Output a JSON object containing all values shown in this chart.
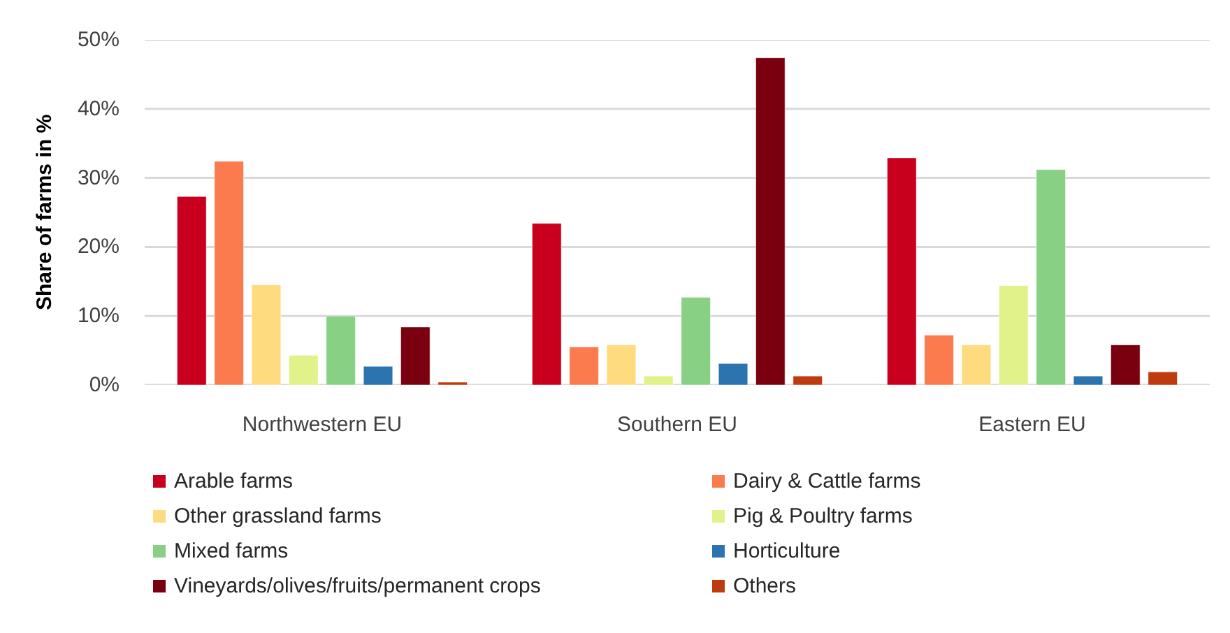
{
  "chart_data": {
    "type": "bar",
    "ylabel": "Share of farms in %",
    "categories": [
      "Northwestern EU",
      "Southern EU",
      "Eastern EU"
    ],
    "series": [
      {
        "name": "Arable farms",
        "color": "#c8001e",
        "values": [
          27.3,
          23.4,
          32.9
        ]
      },
      {
        "name": "Dairy & Cattle farms",
        "color": "#fc7b4e",
        "values": [
          32.4,
          5.5,
          7.2
        ]
      },
      {
        "name": "Other grassland farms",
        "color": "#fedb7f",
        "values": [
          14.5,
          5.8,
          5.8
        ]
      },
      {
        "name": "Pig & Poultry farms",
        "color": "#e2f28b",
        "values": [
          4.3,
          1.3,
          14.4
        ]
      },
      {
        "name": "Mixed farms",
        "color": "#88d084",
        "values": [
          10.0,
          12.7,
          31.2
        ]
      },
      {
        "name": "Horticulture",
        "color": "#2b74b0",
        "values": [
          2.7,
          3.1,
          1.3
        ]
      },
      {
        "name": "Vineyards/olives/fruits/permanent crops",
        "color": "#7a0010",
        "values": [
          8.4,
          47.4,
          5.8
        ]
      },
      {
        "name": "Others",
        "color": "#c03a10",
        "values": [
          0.4,
          1.3,
          1.9
        ]
      }
    ],
    "ylim": [
      0,
      50
    ],
    "yticks": [
      {
        "value": 0,
        "label": "0%"
      },
      {
        "value": 10,
        "label": "10%"
      },
      {
        "value": 20,
        "label": "20%"
      },
      {
        "value": 30,
        "label": "30%"
      },
      {
        "value": 40,
        "label": "40%"
      },
      {
        "value": 50,
        "label": "50%"
      }
    ],
    "grid": "y",
    "legend": "bottom"
  }
}
